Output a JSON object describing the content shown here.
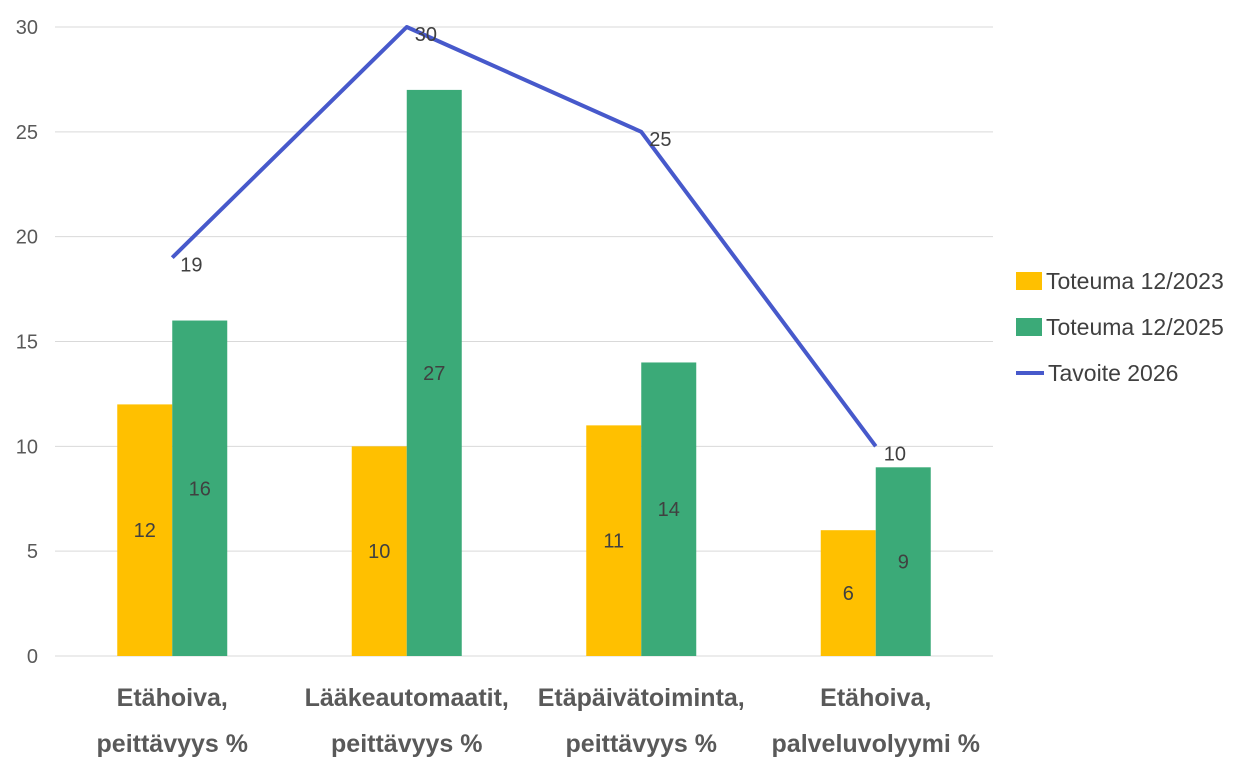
{
  "chart_data": {
    "type": "bar",
    "title": "",
    "xlabel": "",
    "ylabel": "",
    "ylim": [
      0,
      30
    ],
    "yticks": [
      0,
      5,
      10,
      15,
      20,
      25,
      30
    ],
    "grid": true,
    "legend_position": "right",
    "categories": [
      [
        "Etähoiva,",
        "peittävyys %"
      ],
      [
        "Lääkeautomaatit,",
        "peittävyys %"
      ],
      [
        "Etäpäivätoiminta,",
        "peittävyys %"
      ],
      [
        "Etähoiva,",
        "palveluvolyymi %"
      ]
    ],
    "series": [
      {
        "name": "Toteuma 12/2023",
        "type": "bar",
        "color": "#FFC000",
        "values": [
          12,
          10,
          11,
          6
        ]
      },
      {
        "name": "Toteuma 12/2025",
        "type": "bar",
        "color": "#3BAA78",
        "values": [
          16,
          27,
          14,
          9
        ]
      },
      {
        "name": "Tavoite 2026",
        "type": "line",
        "color": "#4759CB",
        "values": [
          19,
          30,
          25,
          10
        ]
      }
    ]
  }
}
